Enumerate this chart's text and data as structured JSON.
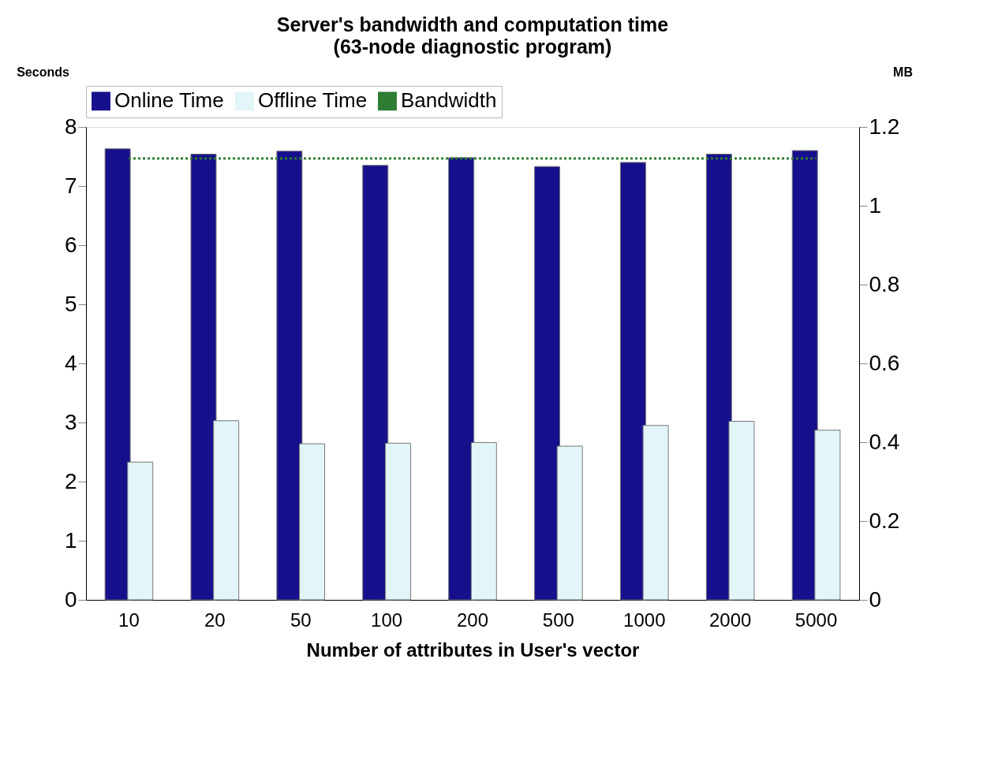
{
  "chart_data": {
    "type": "bar",
    "title": "Server's bandwidth and computation time",
    "subtitle": "(63-node diagnostic program)",
    "xlabel": "Number of attributes in User's vector",
    "ylabel": "Seconds",
    "y2label": "MB",
    "categories": [
      "10",
      "20",
      "50",
      "100",
      "200",
      "500",
      "1000",
      "2000",
      "5000"
    ],
    "series": [
      {
        "name": "Online Time",
        "color": "#16108c",
        "values": [
          7.63,
          7.54,
          7.59,
          7.35,
          7.48,
          7.33,
          7.4,
          7.54,
          7.6
        ]
      },
      {
        "name": "Offline Time",
        "color": "#e2f5f8",
        "values": [
          2.33,
          3.03,
          2.64,
          2.65,
          2.66,
          2.6,
          2.95,
          3.02,
          2.87
        ]
      },
      {
        "name": "Bandwidth",
        "color": "#2e7d32",
        "type": "line",
        "axis": "y2",
        "line_style": "dotted",
        "marker": "none",
        "values": [
          1.12,
          1.12,
          1.12,
          1.12,
          1.12,
          1.12,
          1.12,
          1.12,
          1.12
        ]
      }
    ],
    "ylim": [
      0,
      8
    ],
    "yticks": [
      0,
      1,
      2,
      3,
      4,
      5,
      6,
      7,
      8
    ],
    "y2lim": [
      0,
      1.2
    ],
    "y2ticks": [
      0,
      0.2,
      0.4,
      0.6,
      0.8,
      1,
      1.2
    ],
    "legend": "top",
    "grid": false
  }
}
